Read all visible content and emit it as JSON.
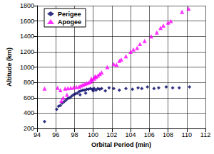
{
  "chart_data": {
    "type": "scatter",
    "x_label": "Orbital Period (min)",
    "y_label": "Altitude (km)",
    "xlim": [
      94,
      112
    ],
    "xticks": [
      94,
      96,
      98,
      100,
      102,
      104,
      106,
      108,
      110,
      112
    ],
    "ylim": [
      200,
      1800
    ],
    "yticks": [
      200,
      400,
      600,
      800,
      1000,
      1200,
      1400,
      1600,
      1800
    ],
    "grid": true,
    "legend": "upper left",
    "series": [
      {
        "name": "Perigee",
        "color": "#000066",
        "marker": "diamond",
        "x": [
          94.8,
          96.1,
          96.3,
          96.5,
          96.7,
          96.9,
          97.1,
          97.3,
          97.5,
          97.7,
          97.9,
          98.1,
          98.3,
          98.5,
          98.7,
          98.9,
          99.1,
          99.3,
          99.5,
          99.7,
          99.9,
          100.1,
          100.3,
          100.5,
          100.7,
          100.9,
          99.2,
          98.6,
          100.0,
          101.3,
          101.7,
          102.2,
          102.8,
          103.5,
          104.2,
          104.8,
          105.2,
          105.8,
          106.5,
          107.0,
          107.8,
          108.5,
          109.2,
          110.3
        ],
        "values": [
          290,
          450,
          490,
          500,
          530,
          550,
          570,
          590,
          600,
          620,
          640,
          650,
          660,
          680,
          690,
          700,
          700,
          710,
          710,
          720,
          710,
          720,
          700,
          720,
          710,
          720,
          660,
          640,
          690,
          690,
          730,
          720,
          700,
          720,
          710,
          730,
          720,
          740,
          720,
          730,
          740,
          730,
          730,
          740
        ]
      },
      {
        "name": "Apogee",
        "color": "#ff00ff",
        "marker": "triangle",
        "x": [
          94.8,
          96.2,
          96.5,
          97.0,
          97.3,
          97.6,
          97.9,
          98.2,
          98.5,
          98.7,
          98.9,
          99.1,
          99.3,
          99.5,
          99.7,
          99.9,
          100.1,
          100.3,
          100.5,
          100.7,
          100.9,
          99.8,
          100.2,
          96.8,
          96.6,
          97.2,
          101.5,
          102.2,
          102.5,
          102.8,
          103.0,
          103.5,
          104.0,
          104.3,
          104.7,
          105.0,
          105.5,
          106.2,
          106.8,
          107.2,
          107.5,
          108.0,
          108.3,
          109.5,
          110.2
        ],
        "values": [
          720,
          730,
          700,
          720,
          725,
          730,
          735,
          740,
          745,
          760,
          770,
          780,
          790,
          800,
          810,
          830,
          850,
          870,
          890,
          910,
          930,
          850,
          880,
          600,
          560,
          640,
          1000,
          1040,
          1030,
          1080,
          1100,
          1140,
          1200,
          1230,
          1250,
          1300,
          1340,
          1400,
          1450,
          1510,
          1540,
          1580,
          1600,
          1720,
          1760
        ]
      }
    ]
  }
}
